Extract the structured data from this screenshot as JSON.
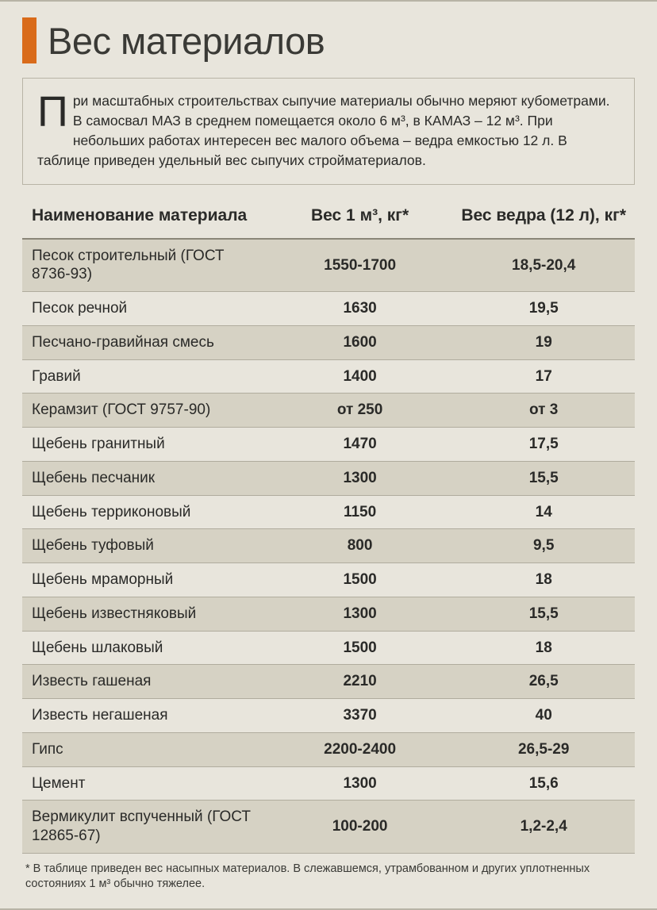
{
  "title": "Вес материалов",
  "intro_dropcap": "П",
  "intro_text": "ри масштабных строительствах сыпучие материалы обычно меряют кубометрами. В самосвал МАЗ в среднем помещается около 6 м³, в КАМАЗ – 12 м³. При небольших работах интересен вес малого объема – ведра емкостью 12 л. В таблице приведен удельный вес сыпучих стройматериалов.",
  "columns": {
    "name": "Наименование материала",
    "m3": "Вес 1 м³, кг*",
    "bucket": "Вес ведра (12 л), кг*"
  },
  "rows": [
    {
      "name": "Песок строительный (ГОСТ 8736-93)",
      "m3": "1550-1700",
      "bucket": "18,5-20,4",
      "shaded": true
    },
    {
      "name": "Песок речной",
      "m3": "1630",
      "bucket": "19,5",
      "shaded": false
    },
    {
      "name": "Песчано-гравийная смесь",
      "m3": "1600",
      "bucket": "19",
      "shaded": true
    },
    {
      "name": "Гравий",
      "m3": "1400",
      "bucket": "17",
      "shaded": false
    },
    {
      "name": "Керамзит (ГОСТ 9757-90)",
      "m3": "от 250",
      "bucket": "от 3",
      "shaded": true
    },
    {
      "name": "Щебень гранитный",
      "m3": "1470",
      "bucket": "17,5",
      "shaded": false
    },
    {
      "name": "Щебень песчаник",
      "m3": "1300",
      "bucket": "15,5",
      "shaded": true
    },
    {
      "name": "Щебень терриконовый",
      "m3": "1150",
      "bucket": "14",
      "shaded": false
    },
    {
      "name": "Щебень туфовый",
      "m3": "800",
      "bucket": "9,5",
      "shaded": true
    },
    {
      "name": "Щебень мраморный",
      "m3": "1500",
      "bucket": "18",
      "shaded": false
    },
    {
      "name": "Щебень известняковый",
      "m3": "1300",
      "bucket": "15,5",
      "shaded": true
    },
    {
      "name": "Щебень шлаковый",
      "m3": "1500",
      "bucket": "18",
      "shaded": false
    },
    {
      "name": "Известь гашеная",
      "m3": "2210",
      "bucket": "26,5",
      "shaded": true
    },
    {
      "name": "Известь негашеная",
      "m3": "3370",
      "bucket": "40",
      "shaded": false
    },
    {
      "name": "Гипс",
      "m3": "2200-2400",
      "bucket": "26,5-29",
      "shaded": true
    },
    {
      "name": "Цемент",
      "m3": "1300",
      "bucket": "15,6",
      "shaded": false
    },
    {
      "name": "Вермикулит вспученный (ГОСТ 12865-67)",
      "m3": "100-200",
      "bucket": "1,2-2,4",
      "shaded": true
    }
  ],
  "footnote": "* В таблице приведен вес насыпных материалов. В слежавшемся, утрамбованном и других уплотненных состояниях 1 м³ обычно тяжелее.",
  "style": {
    "accent_color": "#d96b1a",
    "background": "#e8e5dc",
    "shaded_row": "#d6d2c4",
    "border_color": "#b8b4a6",
    "text_color": "#2a2a28",
    "title_fontsize": 47,
    "body_fontsize": 17.5,
    "table_fontsize": 19,
    "header_fontsize": 21,
    "footnote_fontsize": 14.5,
    "column_widths_pct": [
      40,
      30,
      30
    ],
    "column_align": [
      "left",
      "center",
      "center"
    ]
  }
}
